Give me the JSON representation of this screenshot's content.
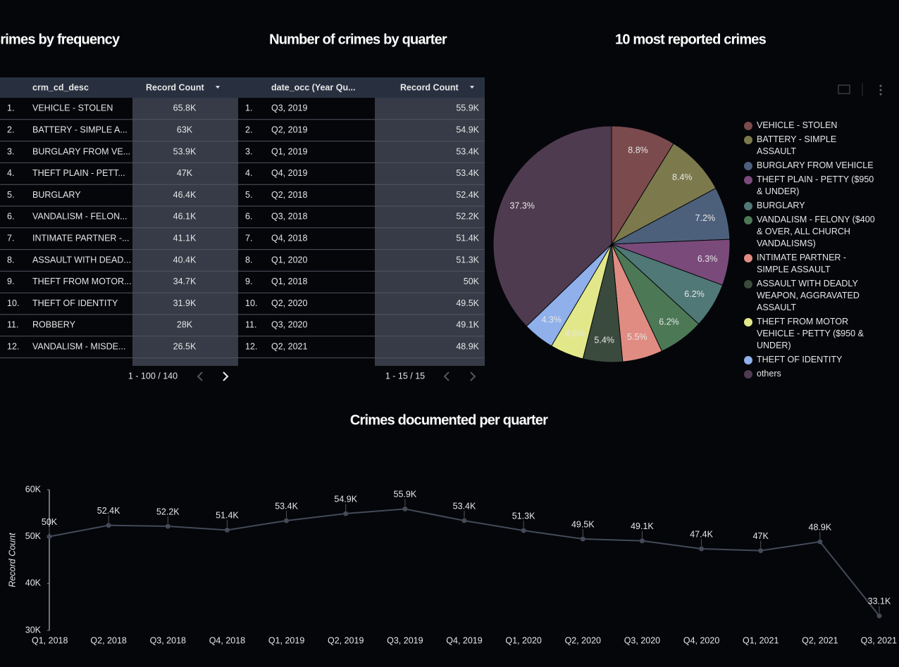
{
  "tables": [
    {
      "title": "Crimes by frequency",
      "columns": [
        "crm_cd_desc",
        "Record Count"
      ],
      "rows": [
        [
          "1.",
          "VEHICLE - STOLEN",
          "65.8K"
        ],
        [
          "2.",
          "BATTERY - SIMPLE A...",
          "63K"
        ],
        [
          "3.",
          "BURGLARY FROM VE...",
          "53.9K"
        ],
        [
          "4.",
          "THEFT PLAIN - PETT...",
          "47K"
        ],
        [
          "5.",
          "BURGLARY",
          "46.4K"
        ],
        [
          "6.",
          "VANDALISM - FELON...",
          "46.1K"
        ],
        [
          "7.",
          "INTIMATE PARTNER -...",
          "41.1K"
        ],
        [
          "8.",
          "ASSAULT WITH DEAD...",
          "40.4K"
        ],
        [
          "9.",
          "THEFT FROM MOTOR...",
          "34.7K"
        ],
        [
          "10.",
          "THEFT OF IDENTITY",
          "31.9K"
        ],
        [
          "11.",
          "ROBBERY",
          "28K"
        ],
        [
          "12.",
          "VANDALISM - MISDE...",
          "26.5K"
        ]
      ],
      "pagination": "1 - 100 / 140"
    },
    {
      "title": "Number of crimes by quarter",
      "columns": [
        "date_occ (Year Qu...",
        "Record Count"
      ],
      "rows": [
        [
          "1.",
          "Q3, 2019",
          "55.9K"
        ],
        [
          "2.",
          "Q2, 2019",
          "54.9K"
        ],
        [
          "3.",
          "Q1, 2019",
          "53.4K"
        ],
        [
          "4.",
          "Q4, 2019",
          "53.4K"
        ],
        [
          "5.",
          "Q2, 2018",
          "52.4K"
        ],
        [
          "6.",
          "Q3, 2018",
          "52.2K"
        ],
        [
          "7.",
          "Q4, 2018",
          "51.4K"
        ],
        [
          "8.",
          "Q1, 2020",
          "51.3K"
        ],
        [
          "9.",
          "Q1, 2018",
          "50K"
        ],
        [
          "10.",
          "Q2, 2020",
          "49.5K"
        ],
        [
          "11.",
          "Q3, 2020",
          "49.1K"
        ],
        [
          "12.",
          "Q2, 2021",
          "48.9K"
        ]
      ],
      "pagination": "1 - 15 / 15"
    }
  ],
  "chart_data": [
    {
      "type": "pie",
      "title": "10 most reported crimes",
      "categories": [
        "VEHICLE - STOLEN",
        "BATTERY - SIMPLE ASSAULT",
        "BURGLARY FROM VEHICLE",
        "THEFT PLAIN - PETTY ($950 & UNDER)",
        "BURGLARY",
        "VANDALISM - FELONY ($400 & OVER, ALL CHURCH VANDALISMS)",
        "INTIMATE PARTNER - SIMPLE ASSAULT",
        "ASSAULT WITH DEADLY WEAPON, AGGRAVATED ASSAULT",
        "THEFT FROM MOTOR VEHICLE - PETTY ($950 & UNDER)",
        "THEFT OF IDENTITY",
        "others"
      ],
      "values": [
        8.8,
        8.4,
        7.2,
        6.3,
        6.2,
        6.2,
        5.5,
        5.4,
        4.6,
        4.3,
        37.3
      ],
      "value_labels": [
        "8.8%",
        "8.4%",
        "7.2%",
        "6.3%",
        "6.2%",
        "6.2%",
        "5.5%",
        "5.4%",
        "4.6%",
        "4.3%",
        "37.3%"
      ],
      "colors": [
        "#7b4a4d",
        "#7c7a4c",
        "#4d607b",
        "#7a4a7a",
        "#4f7876",
        "#4c7856",
        "#e08c82",
        "#3a4a3c",
        "#e2e88a",
        "#8fb0ea",
        "#4f3b4f"
      ]
    },
    {
      "type": "line",
      "title": "Crimes documented per  quarter",
      "ylabel": "Record Count",
      "categories": [
        "Q1, 2018",
        "Q2, 2018",
        "Q3, 2018",
        "Q4, 2018",
        "Q1, 2019",
        "Q2, 2019",
        "Q3, 2019",
        "Q4, 2019",
        "Q1, 2020",
        "Q2, 2020",
        "Q3, 2020",
        "Q4, 2020",
        "Q1, 2021",
        "Q2, 2021",
        "Q3, 2021"
      ],
      "values": [
        50000,
        52400,
        52200,
        51400,
        53400,
        54900,
        55900,
        53400,
        51300,
        49500,
        49100,
        47400,
        47000,
        48900,
        33100
      ],
      "value_labels": [
        "50K",
        "52.4K",
        "52.2K",
        "51.4K",
        "53.4K",
        "54.9K",
        "55.9K",
        "53.4K",
        "51.3K",
        "49.5K",
        "49.1K",
        "47.4K",
        "47K",
        "48.9K",
        "33.1K"
      ],
      "color": "#434a58",
      "ylim": [
        30000,
        60000
      ],
      "yticks": [
        {
          "value": 30000,
          "label": "30K"
        },
        {
          "value": 40000,
          "label": "40K"
        },
        {
          "value": 50000,
          "label": "50K"
        },
        {
          "value": 60000,
          "label": "60K"
        }
      ]
    }
  ]
}
